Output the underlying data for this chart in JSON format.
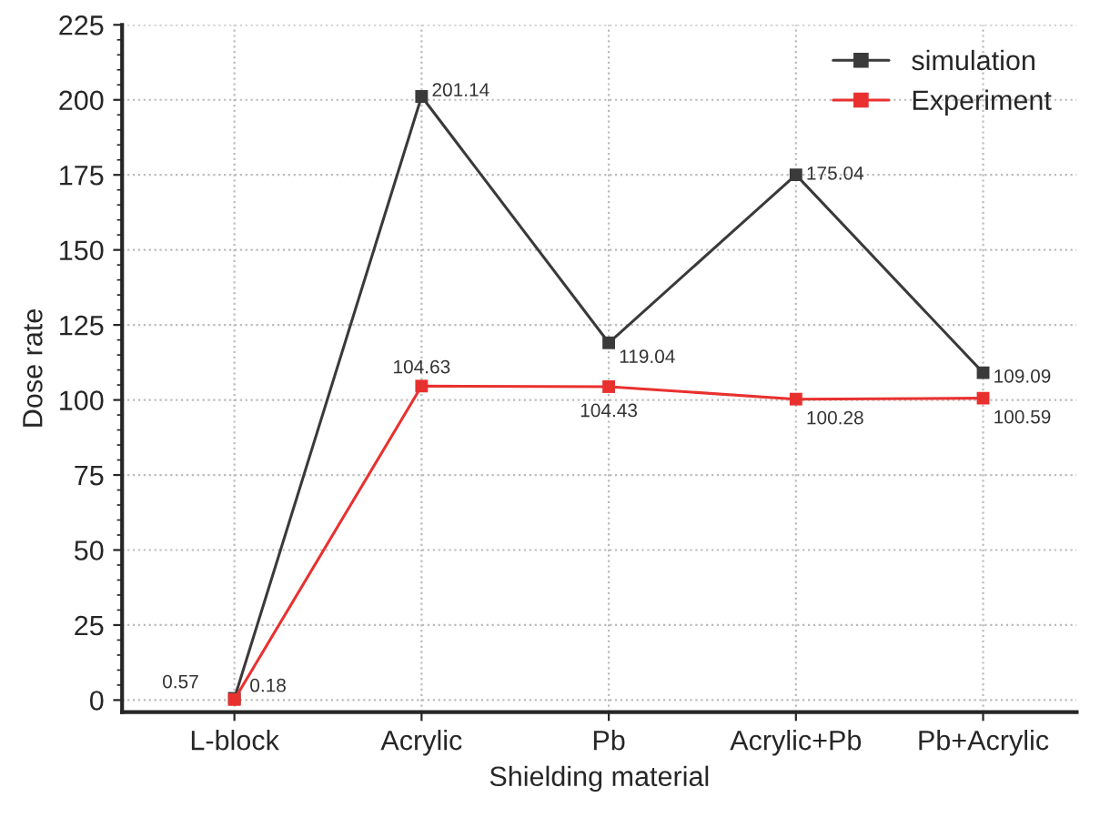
{
  "chart_data": {
    "type": "line",
    "xlabel": "Shielding material",
    "ylabel": "Dose rate",
    "categories": [
      "L-block",
      "Acrylic",
      "Pb",
      "Acrylic+Pb",
      "Pb+Acrylic"
    ],
    "series": [
      {
        "name": "simulation",
        "color": "#3a3a3a",
        "values": [
          0.57,
          201.14,
          119.04,
          175.04,
          109.09
        ]
      },
      {
        "name": "Experiment",
        "color": "#e8312f",
        "values": [
          0.18,
          104.63,
          104.43,
          100.28,
          100.59
        ]
      }
    ],
    "ylim": [
      -4,
      225
    ],
    "yticks": [
      0,
      25,
      50,
      75,
      100,
      125,
      150,
      175,
      200,
      225
    ],
    "grid": true,
    "legend": "top right",
    "marker": "square",
    "line_style": "solid",
    "data_labels": true
  }
}
